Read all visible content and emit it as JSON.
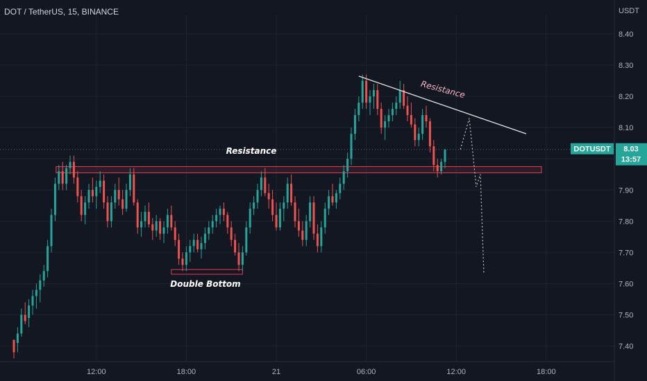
{
  "header": {
    "title": "DOT / TetherUS, 15, BINANCE",
    "currency": "USDT"
  },
  "colors": {
    "background": "#131722",
    "up": "#26a69a",
    "down": "#ef5350",
    "grid": "#1f2330",
    "zone": "#e03e52"
  },
  "chart_data": {
    "type": "candlestick",
    "symbol": "DOTUSDT",
    "interval": "15",
    "exchange": "BINANCE",
    "ylim": [
      7.35,
      8.46
    ],
    "yticks": [
      7.4,
      7.5,
      7.6,
      7.7,
      7.8,
      7.9,
      8.0,
      8.1,
      8.2,
      8.3,
      8.4
    ],
    "ytick_labels": [
      "7.40",
      "7.50",
      "7.60",
      "7.70",
      "7.80",
      "7.90",
      "8.00",
      "8.10",
      "8.20",
      "8.30",
      "8.40"
    ],
    "xticks": [
      {
        "index": 22,
        "label": "12:00"
      },
      {
        "index": 46,
        "label": "18:00"
      },
      {
        "index": 70,
        "label": "21"
      },
      {
        "index": 94,
        "label": "06:00"
      },
      {
        "index": 118,
        "label": "12:00"
      },
      {
        "index": 142,
        "label": "18:00"
      }
    ],
    "last_price": 8.03,
    "last_price_label": "8.03",
    "countdown": "13:57",
    "candles": [
      [
        7.42,
        7.42,
        7.36,
        7.38
      ],
      [
        7.41,
        7.46,
        7.38,
        7.44
      ],
      [
        7.44,
        7.52,
        7.43,
        7.5
      ],
      [
        7.5,
        7.54,
        7.47,
        7.48
      ],
      [
        7.49,
        7.55,
        7.46,
        7.53
      ],
      [
        7.53,
        7.58,
        7.5,
        7.56
      ],
      [
        7.56,
        7.6,
        7.52,
        7.58
      ],
      [
        7.58,
        7.63,
        7.54,
        7.61
      ],
      [
        7.61,
        7.66,
        7.59,
        7.64
      ],
      [
        7.64,
        7.74,
        7.62,
        7.72
      ],
      [
        7.72,
        7.84,
        7.7,
        7.82
      ],
      [
        7.82,
        7.94,
        7.8,
        7.92
      ],
      [
        7.92,
        7.98,
        7.9,
        7.96
      ],
      [
        7.96,
        7.99,
        7.9,
        7.92
      ],
      [
        7.92,
        7.98,
        7.9,
        7.97
      ],
      [
        7.97,
        8.01,
        7.95,
        7.99
      ],
      [
        7.99,
        8.01,
        7.92,
        7.94
      ],
      [
        7.94,
        7.96,
        7.86,
        7.88
      ],
      [
        7.88,
        7.9,
        7.8,
        7.82
      ],
      [
        7.82,
        7.88,
        7.79,
        7.86
      ],
      [
        7.86,
        7.92,
        7.84,
        7.9
      ],
      [
        7.9,
        7.94,
        7.86,
        7.88
      ],
      [
        7.88,
        7.93,
        7.84,
        7.91
      ],
      [
        7.91,
        7.96,
        7.89,
        7.93
      ],
      [
        7.93,
        7.95,
        7.84,
        7.86
      ],
      [
        7.86,
        7.88,
        7.78,
        7.8
      ],
      [
        7.8,
        7.88,
        7.78,
        7.86
      ],
      [
        7.86,
        7.92,
        7.84,
        7.9
      ],
      [
        7.9,
        7.94,
        7.85,
        7.87
      ],
      [
        7.87,
        7.9,
        7.82,
        7.84
      ],
      [
        7.84,
        7.92,
        7.83,
        7.9
      ],
      [
        7.9,
        7.97,
        7.88,
        7.95
      ],
      [
        7.95,
        7.97,
        7.85,
        7.86
      ],
      [
        7.86,
        7.87,
        7.76,
        7.78
      ],
      [
        7.78,
        7.83,
        7.75,
        7.8
      ],
      [
        7.8,
        7.85,
        7.78,
        7.83
      ],
      [
        7.83,
        7.86,
        7.78,
        7.79
      ],
      [
        7.79,
        7.81,
        7.74,
        7.77
      ],
      [
        7.77,
        7.82,
        7.75,
        7.8
      ],
      [
        7.8,
        7.81,
        7.74,
        7.76
      ],
      [
        7.76,
        7.8,
        7.73,
        7.78
      ],
      [
        7.78,
        7.84,
        7.76,
        7.82
      ],
      [
        7.82,
        7.85,
        7.77,
        7.78
      ],
      [
        7.78,
        7.8,
        7.72,
        7.74
      ],
      [
        7.74,
        7.76,
        7.66,
        7.68
      ],
      [
        7.68,
        7.7,
        7.64,
        7.66
      ],
      [
        7.66,
        7.72,
        7.64,
        7.7
      ],
      [
        7.7,
        7.74,
        7.67,
        7.72
      ],
      [
        7.72,
        7.76,
        7.7,
        7.74
      ],
      [
        7.74,
        7.76,
        7.7,
        7.71
      ],
      [
        7.71,
        7.75,
        7.68,
        7.73
      ],
      [
        7.73,
        7.78,
        7.71,
        7.76
      ],
      [
        7.76,
        7.8,
        7.74,
        7.78
      ],
      [
        7.78,
        7.82,
        7.76,
        7.8
      ],
      [
        7.8,
        7.84,
        7.78,
        7.82
      ],
      [
        7.82,
        7.85,
        7.79,
        7.84
      ],
      [
        7.84,
        7.86,
        7.8,
        7.82
      ],
      [
        7.82,
        7.83,
        7.76,
        7.78
      ],
      [
        7.78,
        7.8,
        7.72,
        7.74
      ],
      [
        7.74,
        7.76,
        7.69,
        7.7
      ],
      [
        7.7,
        7.73,
        7.64,
        7.66
      ],
      [
        7.66,
        7.72,
        7.64,
        7.7
      ],
      [
        7.7,
        7.8,
        7.69,
        7.78
      ],
      [
        7.78,
        7.86,
        7.76,
        7.84
      ],
      [
        7.84,
        7.88,
        7.82,
        7.86
      ],
      [
        7.86,
        7.92,
        7.84,
        7.9
      ],
      [
        7.9,
        7.96,
        7.88,
        7.94
      ],
      [
        7.94,
        7.97,
        7.88,
        7.89
      ],
      [
        7.89,
        7.92,
        7.84,
        7.87
      ],
      [
        7.87,
        7.9,
        7.8,
        7.82
      ],
      [
        7.82,
        7.86,
        7.77,
        7.78
      ],
      [
        7.78,
        7.86,
        7.77,
        7.84
      ],
      [
        7.84,
        7.88,
        7.8,
        7.86
      ],
      [
        7.86,
        7.94,
        7.84,
        7.92
      ],
      [
        7.92,
        7.95,
        7.85,
        7.86
      ],
      [
        7.86,
        7.88,
        7.78,
        7.8
      ],
      [
        7.8,
        7.84,
        7.75,
        7.77
      ],
      [
        7.77,
        7.8,
        7.72,
        7.74
      ],
      [
        7.74,
        7.82,
        7.72,
        7.8
      ],
      [
        7.8,
        7.88,
        7.78,
        7.86
      ],
      [
        7.86,
        7.88,
        7.74,
        7.76
      ],
      [
        7.76,
        7.79,
        7.7,
        7.72
      ],
      [
        7.72,
        7.8,
        7.7,
        7.78
      ],
      [
        7.78,
        7.86,
        7.76,
        7.84
      ],
      [
        7.84,
        7.9,
        7.82,
        7.88
      ],
      [
        7.88,
        7.92,
        7.85,
        7.86
      ],
      [
        7.86,
        7.9,
        7.84,
        7.89
      ],
      [
        7.89,
        7.94,
        7.87,
        7.92
      ],
      [
        7.92,
        7.98,
        7.9,
        7.96
      ],
      [
        7.96,
        8.02,
        7.94,
        8.0
      ],
      [
        8.0,
        8.1,
        7.98,
        8.08
      ],
      [
        8.08,
        8.16,
        8.06,
        8.14
      ],
      [
        8.14,
        8.2,
        8.12,
        8.18
      ],
      [
        8.18,
        8.27,
        8.16,
        8.25
      ],
      [
        8.25,
        8.27,
        8.16,
        8.18
      ],
      [
        8.18,
        8.22,
        8.14,
        8.2
      ],
      [
        8.2,
        8.24,
        8.16,
        8.22
      ],
      [
        8.22,
        8.24,
        8.14,
        8.16
      ],
      [
        8.16,
        8.18,
        8.08,
        8.1
      ],
      [
        8.1,
        8.14,
        8.06,
        8.12
      ],
      [
        8.12,
        8.16,
        8.1,
        8.14
      ],
      [
        8.14,
        8.18,
        8.12,
        8.16
      ],
      [
        8.16,
        8.2,
        8.14,
        8.18
      ],
      [
        8.18,
        8.25,
        8.16,
        8.22
      ],
      [
        8.22,
        8.24,
        8.16,
        8.17
      ],
      [
        8.17,
        8.2,
        8.12,
        8.14
      ],
      [
        8.14,
        8.18,
        8.1,
        8.11
      ],
      [
        8.11,
        8.13,
        8.04,
        8.06
      ],
      [
        8.06,
        8.1,
        8.04,
        8.08
      ],
      [
        8.08,
        8.16,
        8.06,
        8.14
      ],
      [
        8.14,
        8.17,
        8.1,
        8.12
      ],
      [
        8.12,
        8.13,
        8.02,
        8.04
      ],
      [
        8.04,
        8.06,
        7.96,
        7.98
      ],
      [
        7.98,
        8.0,
        7.94,
        7.96
      ],
      [
        7.96,
        8.0,
        7.95,
        7.99
      ],
      [
        7.99,
        8.03,
        7.97,
        8.03
      ]
    ],
    "annotations": [
      {
        "type": "text",
        "text": "Resistance",
        "style": "white-italic"
      },
      {
        "type": "text",
        "text": "Resistance",
        "style": "pink-italic-rotated"
      },
      {
        "type": "text",
        "text": "Double Bottom",
        "style": "white-italic"
      },
      {
        "type": "zone",
        "label": "resistance-zone",
        "y0": 7.955,
        "y1": 7.975
      },
      {
        "type": "zone",
        "label": "double-bottom-zone",
        "y0": 7.63,
        "y1": 7.645
      },
      {
        "type": "trendline",
        "label": "descending-resistance",
        "from": [
          8.265
        ],
        "to": [
          8.08
        ]
      },
      {
        "type": "projection",
        "label": "dotted-forecast",
        "points": [
          8.03,
          8.13,
          7.91,
          7.95,
          7.63
        ]
      }
    ]
  }
}
